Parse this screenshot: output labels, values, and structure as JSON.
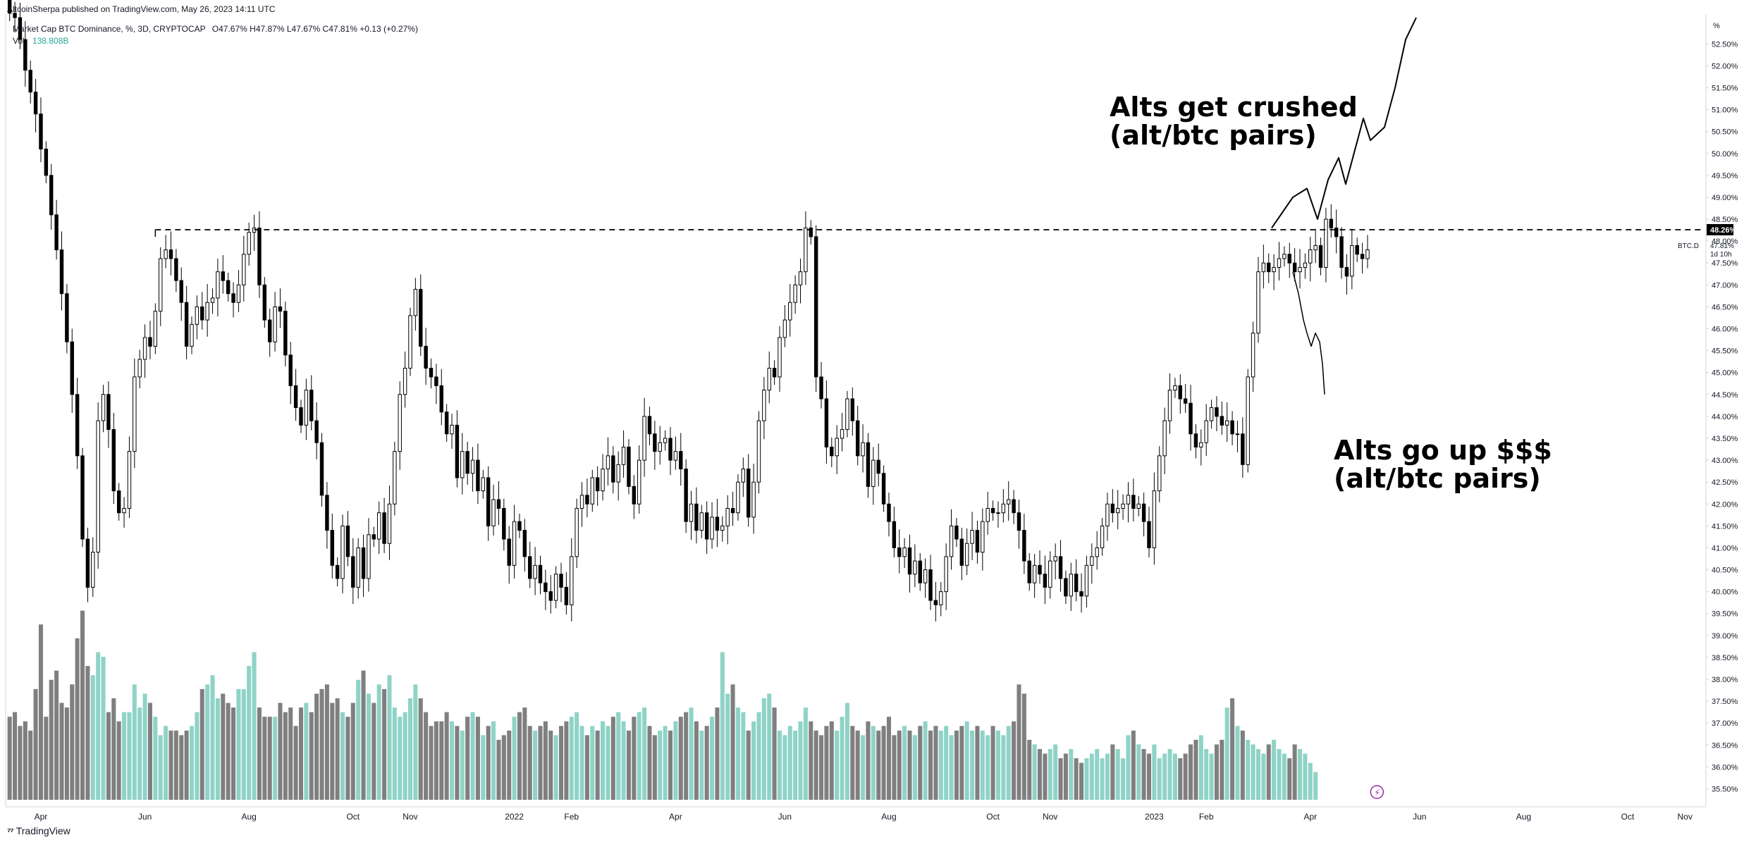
{
  "header": {
    "published_by": "AltcoinSherpa published on TradingView.com, May 26, 2023 14:11 UTC",
    "symbol": "Market Cap BTC Dominance, %, 3D, CRYPTOCAP",
    "ohlc": "O47.67% H47.87% L47.67% C47.81% +0.13 (+0.27%)",
    "volume_label": "Vol",
    "volume_value": "138.808B"
  },
  "footer": {
    "brand": "TradingView",
    "logo_icon": "tradingview-logo-icon"
  },
  "colors": {
    "background": "#ffffff",
    "bull_candle": "#ffffff",
    "bear_candle": "#000000",
    "candle_outline": "#000000",
    "volume_up": "#8fd3c7",
    "volume_down": "#7f7f7f",
    "level_label_bg": "#000000",
    "drawing": "#000000",
    "axis_text": "#131722",
    "axis_line": "#d1d4dc"
  },
  "chart_data": {
    "type": "candlestick",
    "timeframe": "3D",
    "y_axis": {
      "unit": "%",
      "range": [
        35.25,
        53.1
      ],
      "ticks": [
        "52.50%",
        "52.00%",
        "51.50%",
        "51.00%",
        "50.50%",
        "50.00%",
        "49.50%",
        "49.00%",
        "48.50%",
        "48.00%",
        "47.50%",
        "47.00%",
        "46.50%",
        "46.00%",
        "45.50%",
        "45.00%",
        "44.50%",
        "44.00%",
        "43.50%",
        "43.00%",
        "42.50%",
        "42.00%",
        "41.50%",
        "41.00%",
        "40.50%",
        "40.00%",
        "39.50%",
        "39.00%",
        "38.50%",
        "38.00%",
        "37.50%",
        "37.00%",
        "36.50%",
        "36.00%",
        "35.50%"
      ],
      "tick_values": [
        52.5,
        52.0,
        51.5,
        51.0,
        50.5,
        50.0,
        49.5,
        49.0,
        48.5,
        48.0,
        47.5,
        47.0,
        46.5,
        46.0,
        45.5,
        45.0,
        44.5,
        44.0,
        43.5,
        43.0,
        42.5,
        42.0,
        41.5,
        41.0,
        40.5,
        40.0,
        39.5,
        39.0,
        38.5,
        38.0,
        37.5,
        37.0,
        36.5,
        36.0,
        35.5
      ],
      "unit_label": "%"
    },
    "x_axis": {
      "ticks": [
        {
          "label": "Apr",
          "index": 6
        },
        {
          "label": "Jun",
          "index": 26
        },
        {
          "label": "Aug",
          "index": 46
        },
        {
          "label": "Oct",
          "index": 66
        },
        {
          "label": "Nov",
          "index": 77
        },
        {
          "label": "2022",
          "index": 97
        },
        {
          "label": "Feb",
          "index": 108
        },
        {
          "label": "Apr",
          "index": 128
        },
        {
          "label": "Jun",
          "index": 149
        },
        {
          "label": "Aug",
          "index": 169
        },
        {
          "label": "Oct",
          "index": 189
        },
        {
          "label": "Nov",
          "index": 200
        },
        {
          "label": "2023",
          "index": 220
        },
        {
          "label": "Feb",
          "index": 230
        },
        {
          "label": "Apr",
          "index": 250
        },
        {
          "label": "Jun",
          "index": 271
        },
        {
          "label": "Aug",
          "index": 291
        },
        {
          "label": "Oct",
          "index": 311
        },
        {
          "label": "Nov",
          "index": 322
        }
      ],
      "total_slots": 326
    },
    "closes": [
      53.2,
      53.1,
      52.6,
      51.9,
      51.4,
      50.9,
      50.1,
      49.5,
      48.6,
      47.8,
      46.8,
      45.7,
      44.5,
      43.1,
      41.2,
      40.1,
      40.9,
      43.9,
      44.5,
      43.7,
      42.3,
      41.8,
      41.9,
      43.2,
      44.9,
      45.3,
      45.8,
      45.6,
      46.4,
      47.6,
      47.8,
      47.6,
      47.1,
      46.6,
      45.6,
      46.1,
      46.5,
      46.2,
      46.6,
      46.7,
      47.3,
      47.1,
      46.8,
      46.6,
      47.0,
      47.7,
      48.2,
      48.3,
      47.0,
      46.2,
      45.7,
      46.5,
      46.4,
      45.4,
      44.7,
      44.2,
      43.8,
      44.6,
      43.9,
      43.4,
      42.2,
      41.4,
      40.6,
      40.3,
      41.5,
      40.8,
      40.1,
      41.0,
      40.3,
      41.3,
      41.2,
      41.8,
      41.1,
      42.0,
      43.2,
      44.5,
      45.1,
      46.3,
      46.9,
      45.6,
      45.1,
      44.9,
      44.7,
      44.1,
      43.6,
      43.8,
      42.6,
      43.2,
      42.7,
      43.0,
      42.3,
      42.6,
      41.5,
      42.1,
      41.9,
      41.2,
      40.6,
      41.6,
      41.4,
      40.8,
      40.3,
      40.6,
      40.2,
      40.0,
      39.8,
      40.4,
      40.1,
      39.7,
      40.8,
      41.9,
      42.2,
      42.0,
      42.6,
      42.3,
      42.8,
      43.1,
      42.5,
      42.9,
      43.3,
      42.4,
      42.0,
      43.0,
      44.0,
      43.6,
      43.2,
      43.4,
      43.5,
      43.0,
      43.2,
      42.8,
      41.6,
      42.0,
      41.4,
      41.8,
      41.2,
      41.7,
      41.4,
      41.5,
      41.9,
      41.8,
      42.5,
      42.8,
      41.7,
      42.5,
      43.9,
      44.6,
      45.1,
      44.9,
      45.8,
      46.2,
      46.6,
      47.0,
      47.3,
      48.3,
      48.1,
      44.9,
      44.4,
      43.3,
      43.1,
      43.5,
      43.7,
      44.4,
      43.9,
      43.1,
      43.4,
      42.4,
      43.0,
      42.7,
      42.0,
      41.6,
      41.0,
      40.8,
      41.0,
      40.4,
      40.7,
      40.2,
      40.5,
      39.8,
      39.7,
      40.0,
      40.8,
      41.5,
      41.2,
      40.6,
      41.1,
      41.4,
      40.9,
      41.6,
      41.9,
      41.8,
      41.8,
      42.0,
      42.1,
      41.8,
      41.4,
      40.7,
      40.2,
      40.6,
      40.4,
      40.1,
      40.7,
      40.8,
      40.3,
      39.9,
      40.4,
      40.0,
      39.9,
      40.6,
      40.8,
      41.0,
      41.5,
      42.0,
      41.8,
      41.9,
      42.0,
      42.2,
      41.9,
      42.0,
      41.6,
      41.0,
      42.3,
      43.1,
      43.9,
      44.6,
      44.7,
      44.4,
      44.3,
      43.6,
      43.3,
      43.4,
      43.9,
      44.2,
      44.0,
      43.8,
      43.9,
      43.6,
      43.6,
      42.9,
      44.9,
      45.9,
      47.3,
      47.5,
      47.3,
      47.4,
      47.6,
      47.7,
      47.5,
      47.3,
      47.4,
      47.5,
      47.8,
      47.9,
      47.4,
      48.5,
      48.3,
      48.1,
      47.4,
      47.2,
      47.9,
      47.7,
      47.6,
      47.8
    ],
    "volume_pattern": [
      1.8,
      1.9,
      1.6,
      1.7,
      1.5,
      2.4,
      3.8,
      1.8,
      2.6,
      2.8,
      2.1,
      2.0,
      2.5,
      3.5,
      4.1,
      2.9,
      2.7,
      3.2,
      3.1,
      1.9,
      2.2,
      1.7,
      1.9,
      1.9,
      2.5,
      2.0,
      2.3,
      2.1,
      1.8,
      1.4,
      1.6,
      1.5,
      1.5,
      1.4,
      1.5,
      1.6,
      1.9,
      2.4,
      2.5,
      2.7,
      2.2,
      2.3,
      2.1,
      2.0,
      2.4,
      2.4,
      2.9,
      3.2,
      2.0,
      1.8,
      1.8,
      1.8,
      2.1,
      1.9,
      2.0,
      1.6,
      2.0,
      2.1,
      1.9,
      2.3,
      2.4,
      2.5,
      2.1,
      2.2,
      1.9,
      1.8,
      2.1,
      2.6,
      2.8,
      2.3,
      2.1,
      2.5,
      2.4,
      2.7,
      2.0,
      1.8,
      1.9,
      2.2,
      2.5,
      2.2,
      1.9,
      1.6,
      1.7,
      1.7,
      1.9,
      1.7,
      1.6,
      1.5,
      1.8,
      1.9,
      1.8,
      1.4,
      1.6,
      1.7,
      1.3,
      1.4,
      1.5,
      1.8,
      1.9,
      2.0,
      1.6,
      1.5,
      1.6,
      1.7,
      1.5,
      1.4,
      1.6,
      1.7,
      1.8,
      1.9,
      1.6,
      1.4,
      1.6,
      1.5,
      1.7,
      1.6,
      1.8,
      1.9,
      1.7,
      1.5,
      1.8,
      1.9,
      2.0,
      1.6,
      1.4,
      1.5,
      1.6,
      1.5,
      1.7,
      1.8,
      1.9,
      2.0,
      1.7,
      1.5,
      1.6,
      1.8,
      2.0,
      3.2,
      2.3,
      2.5,
      2.0,
      1.9,
      1.5,
      1.7,
      1.9,
      2.2,
      2.3,
      2.0,
      1.5,
      1.4,
      1.6,
      1.5,
      1.7,
      2.0,
      1.7,
      1.5,
      1.4,
      1.6,
      1.7,
      1.5,
      1.8,
      2.1,
      1.6,
      1.5,
      1.4,
      1.7,
      1.6,
      1.5,
      1.6,
      1.8,
      1.4,
      1.5,
      1.6,
      1.5,
      1.4,
      1.6,
      1.7,
      1.5,
      1.6,
      1.5,
      1.6,
      1.4,
      1.5,
      1.6,
      1.7,
      1.5,
      1.6,
      1.5,
      1.4,
      1.6,
      1.5,
      1.4,
      1.6,
      1.7,
      2.5,
      2.3,
      1.3,
      1.2,
      1.1,
      1.0,
      1.1,
      1.2,
      0.9,
      1.0,
      1.1,
      0.9,
      0.8,
      0.9,
      1.0,
      1.1,
      0.9,
      1.0,
      1.2,
      1.1,
      0.9,
      1.4,
      1.5,
      1.2,
      1.1,
      1.0,
      1.2,
      0.9,
      1.0,
      1.1,
      1.0,
      0.9,
      1.0,
      1.2,
      1.3,
      1.4,
      1.1,
      1.0,
      1.2,
      1.3,
      2.0,
      2.2,
      1.6,
      1.5,
      1.3,
      1.2,
      1.1,
      1.0,
      1.2,
      1.3,
      1.1,
      1.0,
      0.9,
      1.2,
      1.1,
      1.0,
      0.8,
      0.6
    ],
    "annotations": [
      {
        "text_line1": "Alts get crushed",
        "text_line2": "(alt/btc pairs)"
      },
      {
        "text_line1": "Alts go up $$$",
        "text_line2": "(alt/btc pairs)"
      }
    ],
    "horizontal_level": {
      "value": 48.26,
      "label": "48.26%"
    },
    "price_labels": {
      "symbol_tag": "BTC.D",
      "last_price": "47.81%",
      "countdown": "1d 10h"
    }
  }
}
